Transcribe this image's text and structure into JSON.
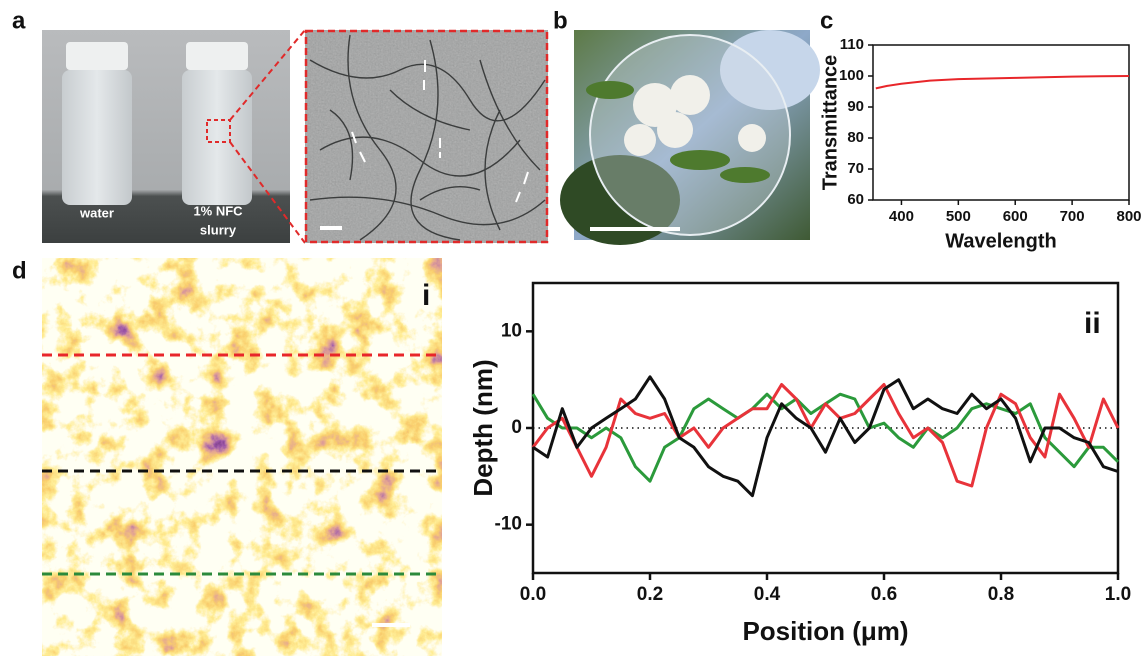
{
  "panels": {
    "a": {
      "label": "a",
      "caption_water": "water",
      "caption_nfc": [
        "1% NFC",
        "slurry"
      ]
    },
    "b": {
      "label": "b"
    },
    "c": {
      "label": "c"
    },
    "d": {
      "label": "d",
      "sublabels": [
        "i",
        "ii"
      ]
    }
  },
  "chart_data": [
    {
      "type": "line",
      "xlabel": "Wavelength",
      "ylabel": "Transmittance",
      "color": "#e8262a",
      "x": [
        355,
        375,
        400,
        450,
        500,
        550,
        600,
        650,
        700,
        750,
        800
      ],
      "values": [
        96,
        96.8,
        97.5,
        98.5,
        99,
        99.2,
        99.4,
        99.6,
        99.8,
        99.9,
        100
      ],
      "xlim": [
        350,
        800
      ],
      "xticks": [
        400,
        500,
        600,
        700,
        800
      ],
      "ylim": [
        60,
        110
      ],
      "yticks": [
        60,
        70,
        80,
        90,
        100,
        110
      ]
    },
    {
      "type": "line",
      "xlabel": "Position (μm)",
      "ylabel": "Depth (nm)",
      "x": [
        0,
        0.025,
        0.05,
        0.075,
        0.1,
        0.125,
        0.15,
        0.175,
        0.2,
        0.225,
        0.25,
        0.275,
        0.3,
        0.325,
        0.35,
        0.375,
        0.4,
        0.425,
        0.45,
        0.475,
        0.5,
        0.525,
        0.55,
        0.575,
        0.6,
        0.625,
        0.65,
        0.675,
        0.7,
        0.725,
        0.75,
        0.775,
        0.8,
        0.825,
        0.85,
        0.875,
        0.9,
        0.925,
        0.95,
        0.975,
        1.0
      ],
      "series": [
        {
          "color": "#2b9a3b",
          "values": [
            3.5,
            1,
            0,
            0,
            -1,
            0,
            -1,
            -4,
            -5.5,
            -2,
            -1,
            2,
            3,
            2,
            1,
            2,
            3.5,
            2,
            3,
            1.5,
            2.5,
            3.5,
            3,
            0,
            0.5,
            -1,
            -2,
            0,
            -1,
            0,
            2,
            2.5,
            2,
            1.5,
            2.5,
            -1,
            -2.5,
            -4,
            -2,
            -2,
            -3.5
          ]
        },
        {
          "color": "#e8333a",
          "values": [
            -2,
            0,
            1,
            -2,
            -5,
            -2,
            3,
            1.5,
            1,
            1.5,
            -1,
            0,
            -2,
            0,
            1,
            2,
            2,
            4.5,
            3,
            0,
            2.5,
            1,
            1.5,
            3,
            4.5,
            1.5,
            -1,
            0,
            -1.5,
            -5.5,
            -6,
            0,
            3.5,
            2.5,
            -1,
            -3,
            3.5,
            1,
            -2,
            3,
            0
          ]
        },
        {
          "color": "#111111",
          "values": [
            -2,
            -3,
            2,
            -2,
            0,
            1,
            2,
            3,
            5.3,
            3,
            -1,
            -2,
            -4,
            -5,
            -5.5,
            -7,
            -1,
            2.5,
            1,
            0,
            -2.5,
            1,
            -1.5,
            0,
            4,
            5,
            2,
            3,
            2,
            1.5,
            3.5,
            2,
            3,
            1,
            -3.5,
            0,
            0,
            -1,
            -1.5,
            -4,
            -4.5
          ]
        }
      ],
      "xlim": [
        0,
        1
      ],
      "xticks": [
        {
          "value": 0,
          "label": "0.0"
        },
        0.2,
        0.4,
        0.6,
        0.8,
        {
          "value": 1,
          "label": "1.0"
        }
      ],
      "ylim": [
        -15,
        15
      ],
      "yticks": [
        -10,
        0,
        10
      ]
    }
  ]
}
